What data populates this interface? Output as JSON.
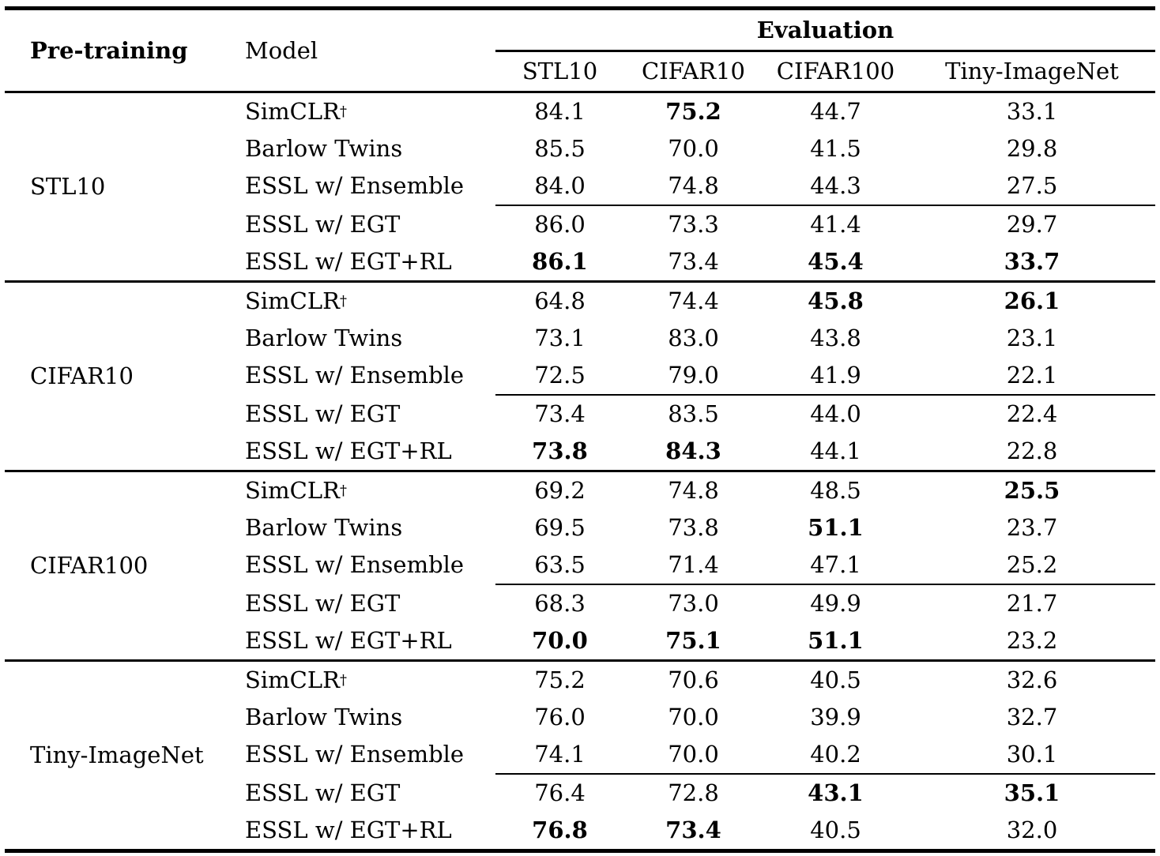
{
  "page": {
    "background": "#ffffff",
    "text_color": "#000000"
  },
  "table": {
    "headers": {
      "pretraining": "Pre-training",
      "model": "Model",
      "evaluation": "Evaluation"
    },
    "eval_columns": [
      "STL10",
      "CIFAR10",
      "CIFAR100",
      "Tiny-ImageNet"
    ],
    "dagger_symbol": "†",
    "blocks": [
      {
        "pretraining": "STL10",
        "rows": [
          {
            "model": "SimCLR",
            "dagger": true,
            "values": [
              "84.1",
              "75.2",
              "44.7",
              "33.1"
            ],
            "bold": [
              0,
              1,
              0,
              0
            ]
          },
          {
            "model": "Barlow Twins",
            "dagger": false,
            "values": [
              "85.5",
              "70.0",
              "41.5",
              "29.8"
            ],
            "bold": [
              0,
              0,
              0,
              0
            ]
          },
          {
            "model": "ESSL w/ Ensemble",
            "dagger": false,
            "values": [
              "84.0",
              "74.8",
              "44.3",
              "27.5"
            ],
            "bold": [
              0,
              0,
              0,
              0
            ]
          },
          {
            "model": "ESSL w/ EGT",
            "dagger": false,
            "values": [
              "86.0",
              "73.3",
              "41.4",
              "29.7"
            ],
            "bold": [
              0,
              0,
              0,
              0
            ]
          },
          {
            "model": "ESSL w/ EGT+RL",
            "dagger": false,
            "values": [
              "86.1",
              "73.4",
              "45.4",
              "33.7"
            ],
            "bold": [
              1,
              0,
              1,
              1
            ]
          }
        ]
      },
      {
        "pretraining": "CIFAR10",
        "rows": [
          {
            "model": "SimCLR",
            "dagger": true,
            "values": [
              "64.8",
              "74.4",
              "45.8",
              "26.1"
            ],
            "bold": [
              0,
              0,
              1,
              1
            ]
          },
          {
            "model": "Barlow Twins",
            "dagger": false,
            "values": [
              "73.1",
              "83.0",
              "43.8",
              "23.1"
            ],
            "bold": [
              0,
              0,
              0,
              0
            ]
          },
          {
            "model": "ESSL w/ Ensemble",
            "dagger": false,
            "values": [
              "72.5",
              "79.0",
              "41.9",
              "22.1"
            ],
            "bold": [
              0,
              0,
              0,
              0
            ]
          },
          {
            "model": "ESSL w/ EGT",
            "dagger": false,
            "values": [
              "73.4",
              "83.5",
              "44.0",
              "22.4"
            ],
            "bold": [
              0,
              0,
              0,
              0
            ]
          },
          {
            "model": "ESSL w/ EGT+RL",
            "dagger": false,
            "values": [
              "73.8",
              "84.3",
              "44.1",
              "22.8"
            ],
            "bold": [
              1,
              1,
              0,
              0
            ]
          }
        ]
      },
      {
        "pretraining": "CIFAR100",
        "rows": [
          {
            "model": "SimCLR",
            "dagger": true,
            "values": [
              "69.2",
              "74.8",
              "48.5",
              "25.5"
            ],
            "bold": [
              0,
              0,
              0,
              1
            ]
          },
          {
            "model": "Barlow Twins",
            "dagger": false,
            "values": [
              "69.5",
              "73.8",
              "51.1",
              "23.7"
            ],
            "bold": [
              0,
              0,
              1,
              0
            ]
          },
          {
            "model": "ESSL w/ Ensemble",
            "dagger": false,
            "values": [
              "63.5",
              "71.4",
              "47.1",
              "25.2"
            ],
            "bold": [
              0,
              0,
              0,
              0
            ]
          },
          {
            "model": "ESSL w/ EGT",
            "dagger": false,
            "values": [
              "68.3",
              "73.0",
              "49.9",
              "21.7"
            ],
            "bold": [
              0,
              0,
              0,
              0
            ]
          },
          {
            "model": "ESSL w/ EGT+RL",
            "dagger": false,
            "values": [
              "70.0",
              "75.1",
              "51.1",
              "23.2"
            ],
            "bold": [
              1,
              1,
              1,
              0
            ]
          }
        ]
      },
      {
        "pretraining": "Tiny-ImageNet",
        "rows": [
          {
            "model": "SimCLR",
            "dagger": true,
            "values": [
              "75.2",
              "70.6",
              "40.5",
              "32.6"
            ],
            "bold": [
              0,
              0,
              0,
              0
            ]
          },
          {
            "model": "Barlow Twins",
            "dagger": false,
            "values": [
              "76.0",
              "70.0",
              "39.9",
              "32.7"
            ],
            "bold": [
              0,
              0,
              0,
              0
            ]
          },
          {
            "model": "ESSL w/ Ensemble",
            "dagger": false,
            "values": [
              "74.1",
              "70.0",
              "40.2",
              "30.1"
            ],
            "bold": [
              0,
              0,
              0,
              0
            ]
          },
          {
            "model": "ESSL w/ EGT",
            "dagger": false,
            "values": [
              "76.4",
              "72.8",
              "43.1",
              "35.1"
            ],
            "bold": [
              0,
              0,
              1,
              1
            ]
          },
          {
            "model": "ESSL w/ EGT+RL",
            "dagger": false,
            "values": [
              "76.8",
              "73.4",
              "40.5",
              "32.0"
            ],
            "bold": [
              1,
              1,
              0,
              0
            ]
          }
        ]
      }
    ]
  }
}
